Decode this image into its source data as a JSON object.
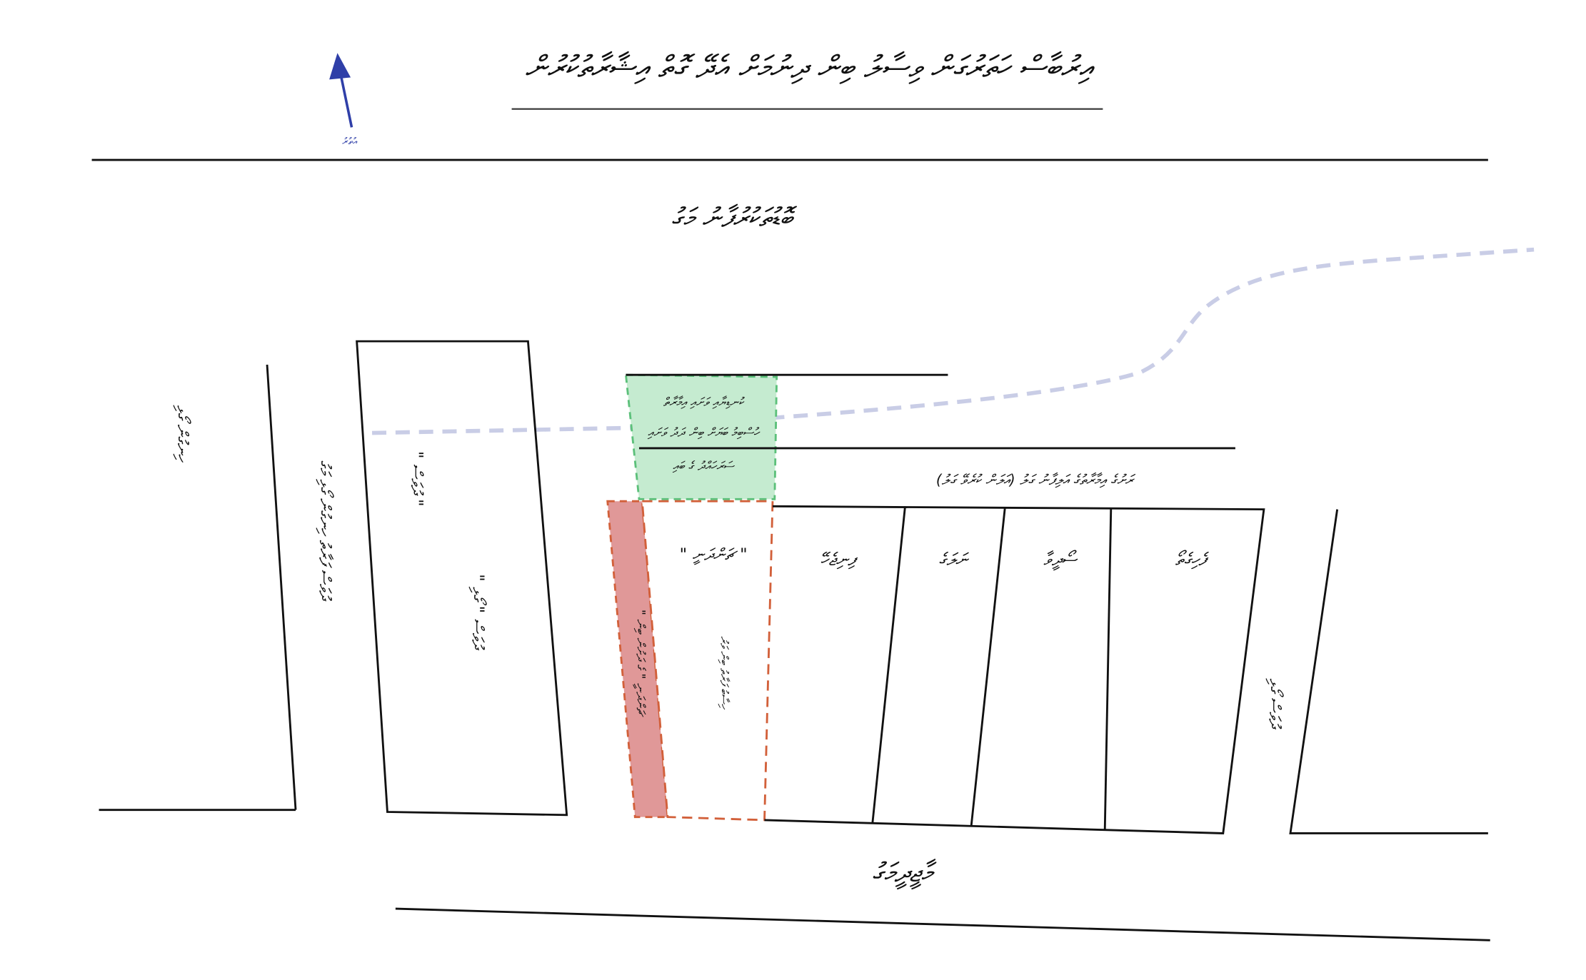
{
  "header": {
    "title": "އިރުބާސް ހަތަރުގަން ވިސާލު ބިން ދިނުމަށް އެދޭ ގޮތް އިޝާރާތުކުރުން"
  },
  "north_label": "އުތުރު",
  "roads": {
    "top": "ބޮޑުތަކުރުފާނު މަގު",
    "bottom": "މާޖީދީމަގު"
  },
  "labels": [
    "ހިނގުން ގޯޅި",
    "ދުވަސް ފަރާތު ހިނގުން ގޯޅި މަގު",
    "\" ދުވަސް \"",
    "\" ދުވަސް \" ގޯޅި",
    "ކުނޑިޔާއި ވަށައި އިމާރާތް",
    "ހުސްބިމު ބަޔަށް ބިން ދަދު ވަށައި",
    "ސަރަހައްދު ގެ ބައި",
    "ރަށުގެ އިމާރާތުގެ އަލިފާނު ގަލު (އަލަން ކުރެވޭ ގަލު)",
    "\" ޗަންދަނީ \" ގެ ދަށުން ބިން",
    "\" ޗަންދަނީ \"",
    "ހިސާބު ފަރާތު ބިން ވަރު",
    "ފިނިޖެހޭ",
    "ނަލަގެ",
    "ސޯދީވާ",
    "ފެހިގެތޯ",
    "ދުވަސް ގޯޅި"
  ]
}
